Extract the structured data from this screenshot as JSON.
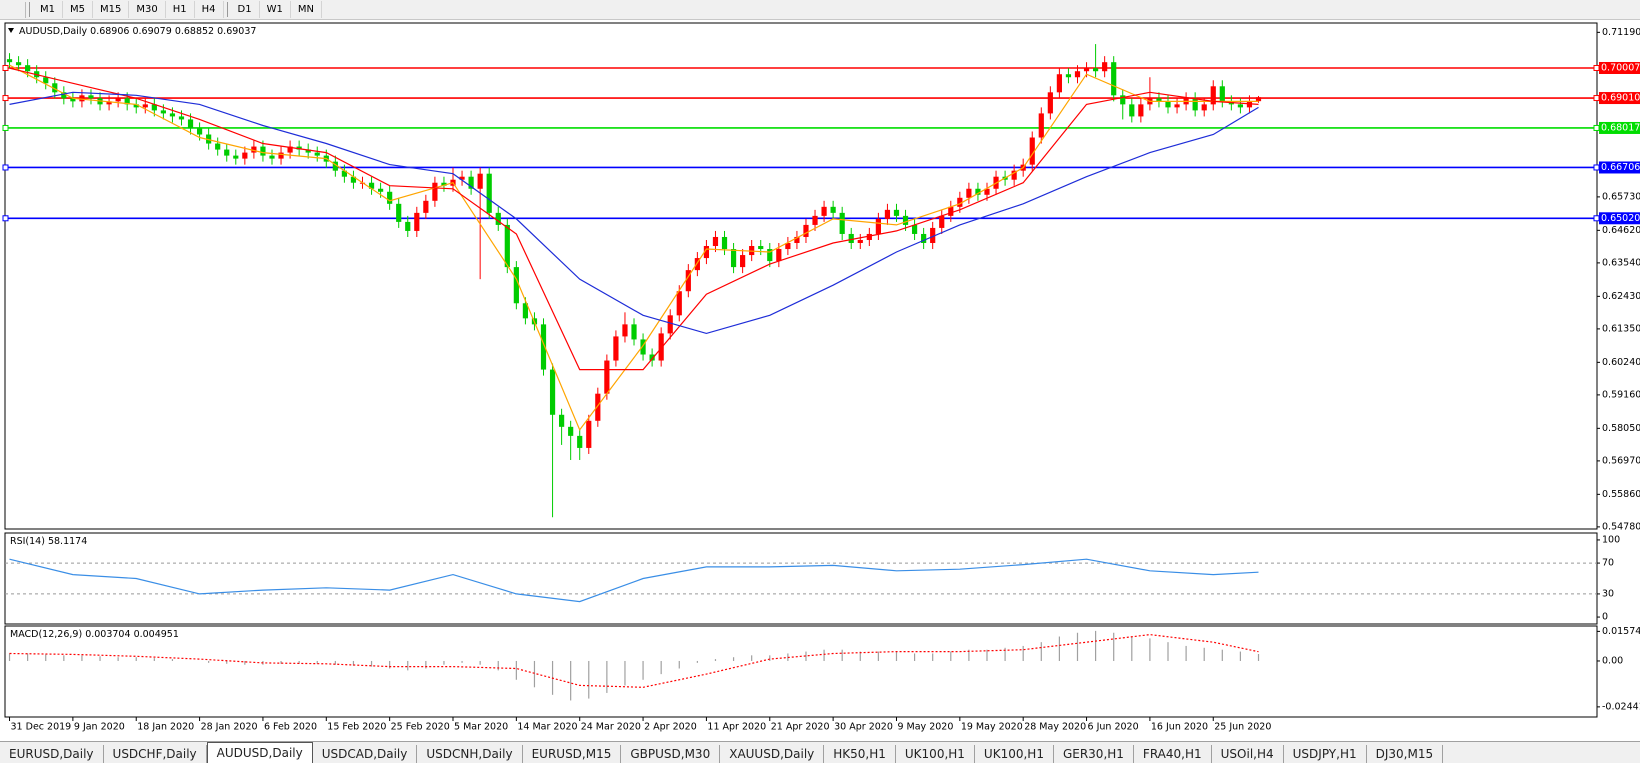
{
  "toolbar": {
    "timeframes": [
      "M1",
      "M5",
      "M15",
      "M30",
      "H1",
      "H4",
      "D1",
      "W1",
      "MN"
    ]
  },
  "tabs": {
    "items": [
      "EURUSD,Daily",
      "USDCHF,Daily",
      "AUDUSD,Daily",
      "USDCAD,Daily",
      "USDCNH,Daily",
      "EURUSD,M15",
      "GBPUSD,M30",
      "XAUUSD,Daily",
      "HK50,H1",
      "UK100,H1",
      "UK100,H1",
      "GER30,H1",
      "FRA40,H1",
      "USOil,H4",
      "USDJPY,H1",
      "DJ30,M15"
    ],
    "active": 2
  },
  "chart_data": [
    {
      "type": "candlestick",
      "title": "AUDUSD,Daily",
      "header_values": [
        0.68906,
        0.69079,
        0.68852,
        0.69037
      ],
      "up_color": "#ff0000",
      "down_color": "#00cc00",
      "xlim": [
        -0.5,
        175.4
      ],
      "ylim": [
        0.5471,
        0.715
      ],
      "xticks": [
        {
          "value": 0,
          "label": "31 Dec 2019"
        },
        {
          "value": 7,
          "label": "9 Jan 2020"
        },
        {
          "value": 14,
          "label": "18 Jan 2020"
        },
        {
          "value": 21,
          "label": "28 Jan 2020"
        },
        {
          "value": 28,
          "label": "6 Feb 2020"
        },
        {
          "value": 35,
          "label": "15 Feb 2020"
        },
        {
          "value": 42,
          "label": "25 Feb 2020"
        },
        {
          "value": 49,
          "label": "5 Mar 2020"
        },
        {
          "value": 56,
          "label": "14 Mar 2020"
        },
        {
          "value": 63,
          "label": "24 Mar 2020"
        },
        {
          "value": 70,
          "label": "2 Apr 2020"
        },
        {
          "value": 77,
          "label": "11 Apr 2020"
        },
        {
          "value": 84,
          "label": "21 Apr 2020"
        },
        {
          "value": 91,
          "label": "30 Apr 2020"
        },
        {
          "value": 98,
          "label": "9 May 2020"
        },
        {
          "value": 105,
          "label": "19 May 2020"
        },
        {
          "value": 112,
          "label": "28 May 2020"
        },
        {
          "value": 119,
          "label": "6 Jun 2020"
        },
        {
          "value": 126,
          "label": "16 Jun 2020"
        },
        {
          "value": 133,
          "label": "25 Jun 2020"
        }
      ],
      "yticks": [
        {
          "value": 0.7119,
          "label": "0.71190"
        },
        {
          "value": 0.6573,
          "label": "0.65730"
        },
        {
          "value": 0.6462,
          "label": "0.64620"
        },
        {
          "value": 0.6354,
          "label": "0.63540"
        },
        {
          "value": 0.6243,
          "label": "0.62430"
        },
        {
          "value": 0.6135,
          "label": "0.61350"
        },
        {
          "value": 0.6024,
          "label": "0.60240"
        },
        {
          "value": 0.5916,
          "label": "0.59160"
        },
        {
          "value": 0.5805,
          "label": "0.58050"
        },
        {
          "value": 0.5697,
          "label": "0.56970"
        },
        {
          "value": 0.5586,
          "label": "0.55860"
        },
        {
          "value": 0.5478,
          "label": "0.54780"
        }
      ],
      "levels": [
        {
          "value": 0.70007,
          "color": "#ff0000"
        },
        {
          "value": 0.6901,
          "label": "0.69010",
          "color": "#ff0000"
        },
        {
          "value": 0.68017,
          "color": "#00dd00"
        },
        {
          "value": 0.66706,
          "color": "#0000ff"
        },
        {
          "value": 0.6502,
          "label": "0.65020",
          "color": "#0000ff"
        }
      ],
      "open": [
        0.703,
        0.702,
        0.701,
        0.699,
        0.697,
        0.695,
        0.692,
        0.69,
        0.689,
        0.691,
        0.69,
        0.688,
        0.689,
        0.69,
        0.688,
        0.687,
        0.688,
        0.686,
        0.685,
        0.684,
        0.683,
        0.68,
        0.678,
        0.675,
        0.673,
        0.671,
        0.67,
        0.672,
        0.674,
        0.671,
        0.67,
        0.672,
        0.674,
        0.673,
        0.672,
        0.671,
        0.669,
        0.666,
        0.664,
        0.662,
        0.662,
        0.66,
        0.659,
        0.655,
        0.649,
        0.646,
        0.652,
        0.656,
        0.662,
        0.661,
        0.663,
        0.664,
        0.66,
        0.665,
        0.652,
        0.648,
        0.634,
        0.622,
        0.617,
        0.615,
        0.6,
        0.585,
        0.581,
        0.578,
        0.574,
        0.583,
        0.592,
        0.603,
        0.611,
        0.615,
        0.61,
        0.605,
        0.603,
        0.612,
        0.618,
        0.626,
        0.633,
        0.637,
        0.641,
        0.644,
        0.64,
        0.634,
        0.638,
        0.641,
        0.64,
        0.636,
        0.64,
        0.642,
        0.644,
        0.648,
        0.651,
        0.654,
        0.652,
        0.645,
        0.642,
        0.643,
        0.645,
        0.65,
        0.653,
        0.651,
        0.648,
        0.645,
        0.642,
        0.647,
        0.651,
        0.654,
        0.657,
        0.66,
        0.658,
        0.66,
        0.664,
        0.663,
        0.666,
        0.668,
        0.677,
        0.685,
        0.692,
        0.698,
        0.697,
        0.699,
        0.7,
        0.699,
        0.702,
        0.691,
        0.688,
        0.684,
        0.688,
        0.69,
        0.689,
        0.687,
        0.688,
        0.69,
        0.686,
        0.688,
        0.694,
        0.689,
        0.688,
        0.687,
        0.68906
      ],
      "high": [
        0.705,
        0.704,
        0.703,
        0.701,
        0.699,
        0.697,
        0.694,
        0.692,
        0.693,
        0.693,
        0.692,
        0.691,
        0.692,
        0.692,
        0.69,
        0.69,
        0.69,
        0.688,
        0.687,
        0.686,
        0.685,
        0.682,
        0.68,
        0.677,
        0.675,
        0.673,
        0.674,
        0.676,
        0.676,
        0.673,
        0.674,
        0.676,
        0.676,
        0.675,
        0.674,
        0.673,
        0.671,
        0.668,
        0.666,
        0.664,
        0.664,
        0.662,
        0.661,
        0.657,
        0.651,
        0.654,
        0.658,
        0.664,
        0.664,
        0.667,
        0.666,
        0.666,
        0.667,
        0.667,
        0.654,
        0.65,
        0.636,
        0.624,
        0.619,
        0.617,
        0.602,
        0.587,
        0.583,
        0.58,
        0.585,
        0.594,
        0.605,
        0.613,
        0.619,
        0.617,
        0.612,
        0.607,
        0.614,
        0.62,
        0.628,
        0.635,
        0.639,
        0.643,
        0.646,
        0.646,
        0.642,
        0.64,
        0.643,
        0.643,
        0.642,
        0.642,
        0.644,
        0.646,
        0.65,
        0.653,
        0.656,
        0.656,
        0.654,
        0.647,
        0.645,
        0.647,
        0.652,
        0.655,
        0.655,
        0.653,
        0.65,
        0.647,
        0.649,
        0.653,
        0.656,
        0.659,
        0.662,
        0.662,
        0.662,
        0.666,
        0.666,
        0.668,
        0.67,
        0.679,
        0.687,
        0.694,
        0.7,
        0.7,
        0.701,
        0.702,
        0.708,
        0.704,
        0.704,
        0.693,
        0.69,
        0.69,
        0.697,
        0.692,
        0.691,
        0.69,
        0.692,
        0.692,
        0.69,
        0.696,
        0.696,
        0.691,
        0.69,
        0.691,
        0.69079
      ],
      "low": [
        0.7,
        0.699,
        0.697,
        0.695,
        0.693,
        0.69,
        0.688,
        0.687,
        0.687,
        0.688,
        0.686,
        0.686,
        0.687,
        0.686,
        0.685,
        0.685,
        0.684,
        0.683,
        0.682,
        0.681,
        0.678,
        0.676,
        0.673,
        0.671,
        0.669,
        0.668,
        0.668,
        0.67,
        0.669,
        0.668,
        0.668,
        0.67,
        0.671,
        0.67,
        0.669,
        0.667,
        0.664,
        0.662,
        0.66,
        0.66,
        0.658,
        0.657,
        0.653,
        0.647,
        0.644,
        0.644,
        0.65,
        0.654,
        0.659,
        0.659,
        0.661,
        0.658,
        0.63,
        0.65,
        0.646,
        0.632,
        0.62,
        0.615,
        0.613,
        0.598,
        0.551,
        0.575,
        0.57,
        0.57,
        0.572,
        0.581,
        0.59,
        0.601,
        0.609,
        0.608,
        0.603,
        0.601,
        0.601,
        0.61,
        0.616,
        0.624,
        0.631,
        0.635,
        0.639,
        0.638,
        0.632,
        0.632,
        0.636,
        0.638,
        0.634,
        0.634,
        0.638,
        0.64,
        0.642,
        0.646,
        0.649,
        0.65,
        0.643,
        0.64,
        0.64,
        0.641,
        0.643,
        0.648,
        0.649,
        0.646,
        0.643,
        0.64,
        0.64,
        0.645,
        0.649,
        0.652,
        0.655,
        0.656,
        0.656,
        0.658,
        0.661,
        0.661,
        0.664,
        0.666,
        0.675,
        0.683,
        0.69,
        0.695,
        0.695,
        0.697,
        0.697,
        0.697,
        0.689,
        0.683,
        0.682,
        0.682,
        0.686,
        0.687,
        0.685,
        0.685,
        0.686,
        0.684,
        0.684,
        0.686,
        0.687,
        0.686,
        0.685,
        0.685,
        0.68852
      ],
      "close": [
        0.702,
        0.701,
        0.699,
        0.697,
        0.695,
        0.692,
        0.69,
        0.689,
        0.691,
        0.69,
        0.688,
        0.689,
        0.69,
        0.688,
        0.687,
        0.688,
        0.686,
        0.685,
        0.684,
        0.683,
        0.68,
        0.678,
        0.675,
        0.673,
        0.671,
        0.67,
        0.672,
        0.674,
        0.671,
        0.67,
        0.672,
        0.674,
        0.673,
        0.672,
        0.671,
        0.669,
        0.666,
        0.664,
        0.662,
        0.662,
        0.66,
        0.659,
        0.655,
        0.649,
        0.646,
        0.652,
        0.656,
        0.662,
        0.661,
        0.663,
        0.664,
        0.66,
        0.665,
        0.652,
        0.648,
        0.634,
        0.622,
        0.617,
        0.615,
        0.6,
        0.585,
        0.581,
        0.578,
        0.574,
        0.583,
        0.592,
        0.603,
        0.611,
        0.615,
        0.61,
        0.605,
        0.603,
        0.612,
        0.618,
        0.626,
        0.633,
        0.637,
        0.641,
        0.644,
        0.64,
        0.634,
        0.638,
        0.641,
        0.64,
        0.636,
        0.64,
        0.642,
        0.644,
        0.648,
        0.651,
        0.654,
        0.652,
        0.645,
        0.642,
        0.643,
        0.645,
        0.65,
        0.653,
        0.651,
        0.648,
        0.645,
        0.642,
        0.647,
        0.651,
        0.654,
        0.657,
        0.66,
        0.658,
        0.66,
        0.664,
        0.663,
        0.666,
        0.668,
        0.677,
        0.685,
        0.692,
        0.698,
        0.697,
        0.699,
        0.7,
        0.699,
        0.702,
        0.691,
        0.688,
        0.684,
        0.688,
        0.69,
        0.689,
        0.687,
        0.688,
        0.69,
        0.686,
        0.688,
        0.694,
        0.689,
        0.688,
        0.687,
        0.689,
        0.69037
      ],
      "series": [
        {
          "color": "#ffa500",
          "x": [
            0,
            7,
            14,
            21,
            28,
            35,
            42,
            49,
            56,
            63,
            70,
            77,
            84,
            91,
            98,
            105,
            112,
            119,
            126,
            133,
            138
          ],
          "values": [
            0.701,
            0.69,
            0.688,
            0.677,
            0.672,
            0.67,
            0.656,
            0.662,
            0.63,
            0.58,
            0.608,
            0.64,
            0.639,
            0.65,
            0.648,
            0.655,
            0.667,
            0.698,
            0.689,
            0.689,
            0.689
          ]
        },
        {
          "color": "#ff0000",
          "x": [
            0,
            7,
            14,
            21,
            28,
            35,
            42,
            49,
            56,
            63,
            70,
            77,
            84,
            91,
            98,
            105,
            112,
            119,
            126,
            133,
            138
          ],
          "values": [
            0.7,
            0.695,
            0.69,
            0.683,
            0.675,
            0.672,
            0.661,
            0.66,
            0.645,
            0.6,
            0.6,
            0.625,
            0.635,
            0.642,
            0.646,
            0.653,
            0.662,
            0.688,
            0.692,
            0.689,
            0.688
          ]
        },
        {
          "color": "#1e2dd8",
          "x": [
            0,
            7,
            14,
            21,
            28,
            35,
            42,
            49,
            56,
            63,
            70,
            77,
            84,
            91,
            98,
            105,
            112,
            119,
            126,
            133,
            138
          ],
          "values": [
            0.688,
            0.692,
            0.691,
            0.688,
            0.681,
            0.675,
            0.668,
            0.665,
            0.65,
            0.63,
            0.618,
            0.612,
            0.618,
            0.628,
            0.639,
            0.648,
            0.655,
            0.664,
            0.672,
            0.678,
            0.687
          ]
        }
      ]
    },
    {
      "type": "line",
      "title": "RSI(14)",
      "current": 58.1174,
      "ylim": [
        -9,
        109
      ],
      "yticks": [
        0,
        30,
        70,
        100
      ],
      "series": [
        {
          "color": "#3a8ee6",
          "x": [
            0,
            7,
            14,
            21,
            28,
            35,
            42,
            49,
            56,
            63,
            70,
            77,
            84,
            91,
            98,
            105,
            112,
            119,
            126,
            133,
            138
          ],
          "values": [
            75,
            55,
            50,
            30,
            35,
            38,
            35,
            55,
            30,
            20,
            50,
            65,
            65,
            67,
            60,
            62,
            68,
            75,
            60,
            55,
            58.1174
          ]
        }
      ]
    },
    {
      "type": "bar",
      "title": "MACD(12,26,9)",
      "current": [
        0.003704,
        0.004951
      ],
      "color": "#a0a0a0",
      "ylim": [
        -0.0298,
        0.0186
      ],
      "yticks": [
        0.015741,
        {
          "value": 0,
          "label": "0.00"
        },
        -0.024412
      ],
      "x": [
        0,
        2,
        4,
        6,
        8,
        10,
        12,
        14,
        16,
        18,
        20,
        22,
        24,
        26,
        28,
        30,
        32,
        34,
        36,
        38,
        40,
        42,
        44,
        46,
        48,
        50,
        52,
        54,
        56,
        58,
        60,
        62,
        64,
        66,
        68,
        70,
        72,
        74,
        76,
        78,
        80,
        82,
        84,
        86,
        88,
        90,
        92,
        94,
        96,
        98,
        100,
        102,
        104,
        106,
        108,
        110,
        112,
        114,
        116,
        118,
        120,
        122,
        124,
        126,
        128,
        130,
        132,
        134,
        136,
        138
      ],
      "values": [
        0.004,
        0.004,
        0.0035,
        0.003,
        0.003,
        0.0025,
        0.002,
        0.002,
        0.0015,
        0.001,
        0,
        -0.001,
        -0.0015,
        -0.002,
        -0.002,
        -0.0015,
        -0.0015,
        -0.0015,
        -0.002,
        -0.0025,
        -0.003,
        -0.004,
        -0.005,
        -0.004,
        -0.002,
        -0.001,
        -0.002,
        -0.005,
        -0.01,
        -0.014,
        -0.018,
        -0.021,
        -0.02,
        -0.017,
        -0.013,
        -0.01,
        -0.007,
        -0.004,
        -0.001,
        0.001,
        0.002,
        0.003,
        0.003,
        0.004,
        0.005,
        0.006,
        0.006,
        0.005,
        0.005,
        0.005,
        0.004,
        0.004,
        0.005,
        0.006,
        0.006,
        0.007,
        0.008,
        0.01,
        0.013,
        0.015,
        0.016,
        0.015,
        0.013,
        0.012,
        0.01,
        0.008,
        0.007,
        0.006,
        0.005,
        0.003704
      ],
      "series": [
        {
          "color": "#ff0000",
          "style": "dotted",
          "x": [
            0,
            7,
            14,
            21,
            28,
            35,
            42,
            49,
            56,
            63,
            70,
            77,
            84,
            91,
            98,
            105,
            112,
            119,
            126,
            133,
            138
          ],
          "values": [
            0.004,
            0.0035,
            0.0025,
            0.001,
            -0.001,
            -0.0015,
            -0.003,
            -0.003,
            -0.004,
            -0.013,
            -0.014,
            -0.007,
            0.001,
            0.004,
            0.005,
            0.005,
            0.006,
            0.01,
            0.014,
            0.01,
            0.004951
          ]
        }
      ]
    }
  ]
}
